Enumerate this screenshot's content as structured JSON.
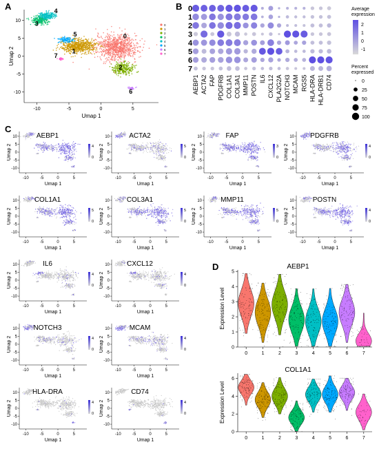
{
  "panels": {
    "a": "A",
    "b": "B",
    "c": "C",
    "d": "D"
  },
  "umapA": {
    "xlabel": "Umap 1",
    "ylabel": "Umap 2",
    "xticks": [
      "-10",
      "-5",
      "0",
      "5"
    ],
    "yticks": [
      "10",
      "5",
      "0",
      "-5",
      "-10"
    ],
    "cluster_labels": [
      "0",
      "1",
      "2",
      "3",
      "4",
      "5",
      "6",
      "7"
    ],
    "legend": [
      "0",
      "1",
      "2",
      "3",
      "4",
      "5",
      "6",
      "7"
    ],
    "colors": [
      "#f8766d",
      "#cd9600",
      "#7cae00",
      "#00be67",
      "#00bfc4",
      "#00a9ff",
      "#c77cff",
      "#ff61cc"
    ]
  },
  "chart_data": [
    {
      "type": "scatter",
      "title": "",
      "xlabel": "Umap 1",
      "ylabel": "Umap 2",
      "xlim": [
        -12,
        9
      ],
      "ylim": [
        -13,
        13
      ],
      "note": "UMAP of 8 clusters",
      "clusters": [
        {
          "name": "0",
          "center": [
            2.5,
            2.5
          ],
          "spread": [
            3.2,
            3.5
          ]
        },
        {
          "name": "1",
          "center": [
            -3.5,
            2.8
          ],
          "spread": [
            2.7,
            2.0
          ]
        },
        {
          "name": "2",
          "center": [
            3.5,
            -3.5
          ],
          "spread": [
            1.6,
            1.6
          ]
        },
        {
          "name": "3",
          "center": [
            -9.5,
            10
          ],
          "spread": [
            1.3,
            1.2
          ]
        },
        {
          "name": "4",
          "center": [
            -8.5,
            11.3
          ],
          "spread": [
            1.3,
            1.0
          ]
        },
        {
          "name": "5",
          "center": [
            -5.5,
            4.5
          ],
          "spread": [
            1.2,
            0.8
          ]
        },
        {
          "name": "6",
          "center": [
            4.8,
            -9
          ],
          "spread": [
            0.5,
            0.5
          ]
        },
        {
          "name": "7",
          "center": [
            -6.3,
            -0.8
          ],
          "spread": [
            0.4,
            0.3
          ]
        }
      ]
    },
    {
      "type": "dotplot",
      "genes": [
        "AEBP1",
        "ACTA2",
        "FAP",
        "PDGFRB",
        "COL1A1",
        "COL3A1",
        "MMP11",
        "POSTN",
        "IL6",
        "CXCL12",
        "PLA2G2A",
        "NOTCH3",
        "MCAM",
        "RGS5",
        "HLA-DRA",
        "HLA-DRB1",
        "CD74"
      ],
      "clusters": [
        "0",
        "1",
        "2",
        "3",
        "4",
        "5",
        "6",
        "7"
      ],
      "legend_expr_title": "Average expression",
      "legend_expr_ticks": [
        "2",
        "1",
        "0",
        "-1"
      ],
      "legend_pct_title": "Percent expressed",
      "legend_pct_ticks": [
        "0",
        "25",
        "50",
        "75",
        "100"
      ],
      "avg_expression": [
        [
          2.2,
          2.1,
          2.1,
          2.0,
          2.3,
          2.4,
          2.2,
          2.3,
          0.1,
          0.5,
          0.0,
          0.0,
          0.0,
          0.0,
          -0.5,
          -0.5,
          -0.6
        ],
        [
          1.0,
          0.6,
          1.5,
          0.8,
          1.5,
          1.4,
          1.4,
          1.5,
          0.0,
          0.4,
          0.0,
          -0.2,
          -0.3,
          -0.3,
          -0.4,
          -0.4,
          -0.4
        ],
        [
          1.5,
          0.3,
          1.6,
          1.0,
          1.8,
          1.7,
          0.8,
          1.2,
          0.3,
          1.0,
          0.3,
          -0.2,
          -0.3,
          -0.4,
          -0.3,
          -0.3,
          -0.2
        ],
        [
          -0.6,
          1.8,
          -0.5,
          2.3,
          -0.5,
          -0.3,
          -0.6,
          -0.5,
          -0.5,
          -0.3,
          -0.5,
          2.5,
          2.4,
          2.2,
          -0.5,
          -0.5,
          -0.5
        ],
        [
          0.8,
          0.7,
          1.0,
          1.4,
          1.4,
          1.3,
          0.4,
          0.8,
          0.5,
          1.3,
          0.3,
          0.6,
          0.3,
          0.4,
          -0.3,
          -0.3,
          -0.4
        ],
        [
          0.5,
          -0.2,
          0.4,
          0.3,
          0.6,
          0.6,
          -0.1,
          0.2,
          2.3,
          2.5,
          2.2,
          0.0,
          -0.2,
          -0.2,
          -0.2,
          -0.2,
          -0.2
        ],
        [
          0.5,
          0.2,
          0.5,
          0.4,
          0.8,
          0.8,
          0.3,
          0.5,
          0.3,
          0.4,
          0.2,
          0.2,
          0.1,
          0.0,
          2.5,
          2.5,
          2.4
        ],
        [
          -0.4,
          -0.5,
          -0.5,
          -0.4,
          -0.3,
          -0.3,
          -0.5,
          -0.4,
          -0.3,
          -0.3,
          -0.3,
          -0.5,
          -0.5,
          -0.5,
          -0.1,
          -0.1,
          0.1
        ]
      ],
      "pct_expressed": [
        [
          95,
          90,
          90,
          92,
          98,
          98,
          90,
          95,
          10,
          40,
          5,
          10,
          10,
          10,
          20,
          20,
          25
        ],
        [
          80,
          70,
          85,
          75,
          92,
          92,
          80,
          85,
          8,
          35,
          5,
          15,
          12,
          12,
          20,
          20,
          25
        ],
        [
          85,
          55,
          85,
          80,
          95,
          95,
          60,
          75,
          30,
          70,
          30,
          10,
          10,
          10,
          25,
          25,
          30
        ],
        [
          30,
          95,
          25,
          98,
          40,
          45,
          15,
          25,
          10,
          20,
          5,
          98,
          95,
          95,
          20,
          20,
          25
        ],
        [
          70,
          70,
          75,
          85,
          90,
          90,
          45,
          65,
          40,
          85,
          30,
          40,
          25,
          30,
          25,
          25,
          30
        ],
        [
          60,
          40,
          55,
          55,
          75,
          75,
          30,
          45,
          90,
          98,
          85,
          25,
          15,
          15,
          30,
          30,
          35
        ],
        [
          60,
          55,
          60,
          60,
          80,
          80,
          40,
          55,
          30,
          45,
          20,
          30,
          25,
          25,
          95,
          95,
          95
        ],
        [
          25,
          20,
          20,
          25,
          35,
          35,
          15,
          20,
          15,
          20,
          15,
          15,
          10,
          10,
          40,
          40,
          50
        ]
      ]
    },
    {
      "type": "scatter",
      "note": "gene feature UMAPs",
      "panels": [
        {
          "gene": "AEBP1",
          "max": "4",
          "pattern": "fibro"
        },
        {
          "gene": "ACTA2",
          "max": "5",
          "pattern": "peri"
        },
        {
          "gene": "FAP",
          "max": "3",
          "pattern": "fibro"
        },
        {
          "gene": "PDGFRB",
          "max": "4",
          "pattern": "all"
        },
        {
          "gene": "COL1A1",
          "max": "5",
          "pattern": "fibro"
        },
        {
          "gene": "COL3A1",
          "max": "5",
          "pattern": "fibro"
        },
        {
          "gene": "MMP11",
          "max": "5",
          "pattern": "fibro"
        },
        {
          "gene": "POSTN",
          "max": "4",
          "pattern": "fibro"
        },
        {
          "gene": "IL6",
          "max": "4",
          "pattern": "c5"
        },
        {
          "gene": "CXCL12",
          "max": "4",
          "pattern": "c5"
        },
        {
          "gene": "NOTCH3",
          "max": "4",
          "pattern": "peri"
        },
        {
          "gene": "MCAM",
          "max": "4",
          "pattern": "peri"
        },
        {
          "gene": "HLA-DRA",
          "max": "4",
          "pattern": "c6"
        },
        {
          "gene": "CD74",
          "max": "4",
          "pattern": "c6"
        }
      ],
      "xlabel": "Umap 1",
      "ylabel": "Umap 2",
      "xticks": [
        "-10",
        "-5",
        "0",
        "5"
      ],
      "yticks": [
        "10",
        "5",
        "0",
        "-5",
        "-10"
      ],
      "min_label": "0"
    },
    {
      "type": "violin",
      "ylabel": "Expression Level",
      "plots": [
        {
          "gene": "AEBP1",
          "yticks": [
            "0",
            "1",
            "2",
            "3",
            "4",
            "5"
          ],
          "ylim": [
            0,
            5.1
          ],
          "medians": [
            2.9,
            2.3,
            2.8,
            1.8,
            1.7,
            1.7,
            2.3,
            0.4
          ]
        },
        {
          "gene": "COL1A1",
          "yticks": [
            "0",
            "2",
            "4",
            "6"
          ],
          "ylim": [
            0,
            6.6
          ],
          "medians": [
            5.0,
            3.6,
            4.0,
            1.6,
            4.2,
            4.2,
            4.4,
            2.2
          ]
        }
      ],
      "categories": [
        "0",
        "1",
        "2",
        "3",
        "4",
        "5",
        "6",
        "7"
      ]
    }
  ]
}
